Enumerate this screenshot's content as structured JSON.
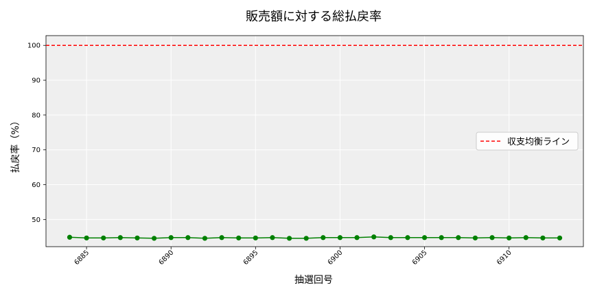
{
  "chart_data": {
    "type": "line",
    "title": "販売額に対する総払戻率",
    "xlabel": "抽選回号",
    "ylabel": "払戻率（%）",
    "xlim": [
      6882.6,
      6914.4
    ],
    "ylim": [
      42.2,
      102.8
    ],
    "xticks": [
      6885,
      6890,
      6895,
      6900,
      6905,
      6910
    ],
    "yticks": [
      50,
      60,
      70,
      80,
      90,
      100
    ],
    "grid": true,
    "legend_position": "center-right",
    "colors": {
      "series": "#008000",
      "reference": "#ff0000",
      "plot_bg": "#efefef"
    },
    "reference_line": {
      "label": "収支均衡ライン",
      "y": 100,
      "style": "dashed"
    },
    "series": [
      {
        "x": [
          6884,
          6885,
          6886,
          6887,
          6888,
          6889,
          6890,
          6891,
          6892,
          6893,
          6894,
          6895,
          6896,
          6897,
          6898,
          6899,
          6900,
          6901,
          6902,
          6903,
          6904,
          6905,
          6906,
          6907,
          6908,
          6909,
          6910,
          6911,
          6912,
          6913
        ],
        "values": [
          44.9,
          44.7,
          44.7,
          44.8,
          44.7,
          44.6,
          44.8,
          44.8,
          44.6,
          44.8,
          44.7,
          44.7,
          44.8,
          44.6,
          44.6,
          44.8,
          44.8,
          44.8,
          45.0,
          44.8,
          44.8,
          44.8,
          44.8,
          44.8,
          44.7,
          44.8,
          44.7,
          44.8,
          44.7,
          44.7
        ]
      }
    ]
  }
}
